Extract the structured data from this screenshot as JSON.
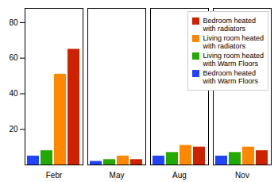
{
  "chart_data": {
    "type": "bar",
    "categories": [
      "Febr",
      "May",
      "Aug",
      "Nov"
    ],
    "series": [
      {
        "name": "Bedroom heated\nwith Warm Floors",
        "color": "#2244ff",
        "values": [
          5,
          2,
          5,
          5
        ]
      },
      {
        "name": "Living room heated\nwith Warm Floors",
        "color": "#22aa00",
        "values": [
          8,
          3,
          7,
          7
        ]
      },
      {
        "name": "Living room heated\nwith radiators",
        "color": "#ff8800",
        "values": [
          51,
          5,
          11,
          10
        ]
      },
      {
        "name": "Bedroom heated\nwith radiators",
        "color": "#cc2200",
        "values": [
          65,
          3,
          10,
          8
        ]
      }
    ],
    "ylim": [
      0,
      88
    ],
    "yticks": [
      20,
      40,
      60,
      80
    ],
    "grid": false,
    "legend": "upper right"
  }
}
